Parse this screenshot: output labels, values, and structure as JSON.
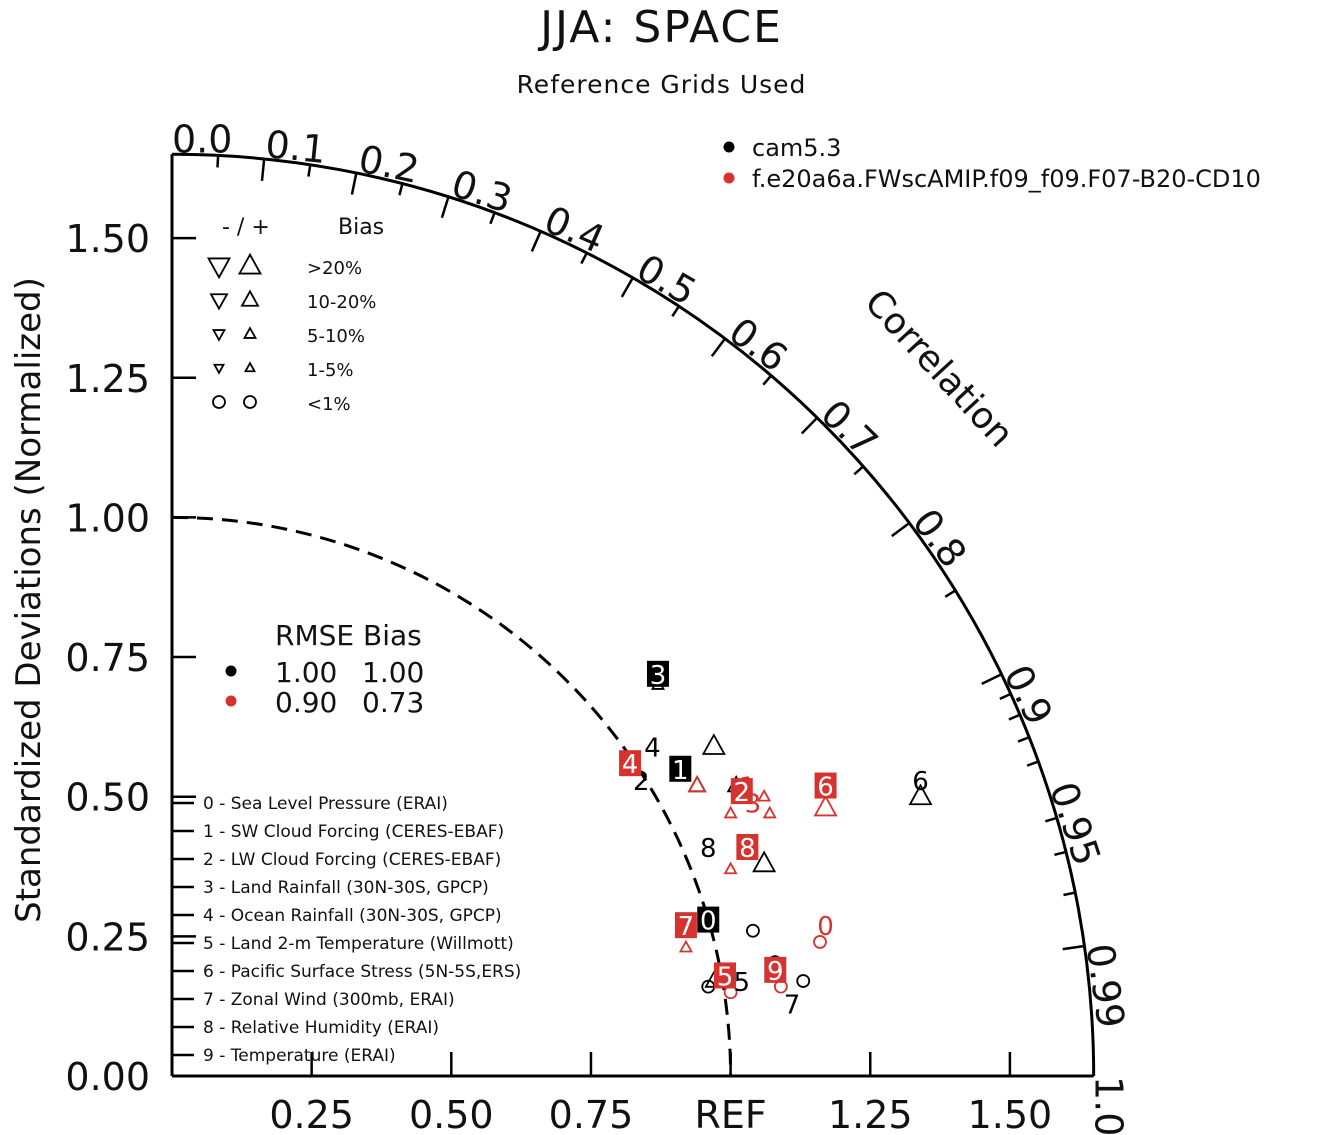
{
  "title": "JJA: SPACE",
  "subtitle": "Reference Grids Used",
  "chart_data": {
    "type": "scatter",
    "title": "JJA: SPACE",
    "subtitle": "Reference Grids Used",
    "ylabel": "Standardized Deviations (Normalized)",
    "correlation_label": "Correlation",
    "xlim": [
      0,
      1.65
    ],
    "ylim": [
      0,
      1.65
    ],
    "y_ticks": [
      "0.00",
      "0.25",
      "0.50",
      "0.75",
      "1.00",
      "1.25",
      "1.50"
    ],
    "x_ticks": [
      "0.25",
      "0.50",
      "0.75",
      "REF",
      "1.25",
      "1.50"
    ],
    "corr_ticks": [
      "0.0",
      "0.1",
      "0.2",
      "0.3",
      "0.4",
      "0.5",
      "0.6",
      "0.7",
      "0.8",
      "0.9",
      "0.95",
      "0.99",
      "1.0"
    ],
    "reference_arc_radius": 1.0,
    "series": [
      {
        "name": "cam5.3",
        "color": "#000000",
        "points": [
          {
            "id": "0",
            "x": 0.96,
            "y": 0.28,
            "label_style": "box"
          },
          {
            "id": "1",
            "x": 0.91,
            "y": 0.55,
            "label_style": "box"
          },
          {
            "id": "2",
            "x": 0.84,
            "y": 0.53,
            "label_style": "plain"
          },
          {
            "id": "3",
            "x": 0.87,
            "y": 0.72,
            "label_style": "box"
          },
          {
            "id": "4",
            "x": 0.86,
            "y": 0.59,
            "label_style": "plain"
          },
          {
            "id": "5",
            "x": 1.02,
            "y": 0.17,
            "label_style": "plain"
          },
          {
            "id": "6",
            "x": 1.34,
            "y": 0.53,
            "label_style": "plain"
          },
          {
            "id": "7",
            "x": 1.11,
            "y": 0.13,
            "label_style": "plain"
          },
          {
            "id": "8",
            "x": 0.96,
            "y": 0.41,
            "label_style": "plain"
          },
          {
            "id": "9",
            "x": 1.08,
            "y": 0.2,
            "label_style": "plain"
          }
        ]
      },
      {
        "name": "f.e20a6a.FWscAMIP.f09_f09.F07-B20-CD10",
        "color": "#d63330",
        "points": [
          {
            "id": "0",
            "x": 1.17,
            "y": 0.27,
            "label_style": "plain"
          },
          {
            "id": "1",
            "x": 1.03,
            "y": 0.52,
            "label_style": "plain"
          },
          {
            "id": "2",
            "x": 1.02,
            "y": 0.51,
            "label_style": "box"
          },
          {
            "id": "3",
            "x": 1.04,
            "y": 0.49,
            "label_style": "plain"
          },
          {
            "id": "4",
            "x": 0.82,
            "y": 0.56,
            "label_style": "box"
          },
          {
            "id": "5",
            "x": 0.99,
            "y": 0.18,
            "label_style": "box"
          },
          {
            "id": "6",
            "x": 1.17,
            "y": 0.52,
            "label_style": "box"
          },
          {
            "id": "7",
            "x": 0.92,
            "y": 0.27,
            "label_style": "box"
          },
          {
            "id": "8",
            "x": 1.03,
            "y": 0.41,
            "label_style": "box"
          },
          {
            "id": "9",
            "x": 1.08,
            "y": 0.19,
            "label_style": "box"
          }
        ]
      }
    ],
    "markers": [
      {
        "series": 0,
        "shape": "tri-up",
        "size": "small",
        "x": 0.87,
        "y": 0.7
      },
      {
        "series": 0,
        "shape": "tri-up",
        "size": "large",
        "x": 0.97,
        "y": 0.59
      },
      {
        "series": 0,
        "shape": "tri-up",
        "size": "medium",
        "x": 0.94,
        "y": 0.52
      },
      {
        "series": 0,
        "shape": "tri-up",
        "size": "medium",
        "x": 1.01,
        "y": 0.52
      },
      {
        "series": 0,
        "shape": "tri-up",
        "size": "large",
        "x": 1.34,
        "y": 0.5
      },
      {
        "series": 0,
        "shape": "tri-up",
        "size": "large",
        "x": 1.06,
        "y": 0.38
      },
      {
        "series": 0,
        "shape": "circle",
        "size": "small",
        "x": 1.04,
        "y": 0.26
      },
      {
        "series": 0,
        "shape": "circle",
        "size": "small",
        "x": 0.96,
        "y": 0.16
      },
      {
        "series": 0,
        "shape": "circle",
        "size": "small",
        "x": 1.13,
        "y": 0.17
      },
      {
        "series": 0,
        "shape": "tri-up",
        "size": "medium",
        "x": 0.97,
        "y": 0.17
      },
      {
        "series": 1,
        "shape": "tri-up",
        "size": "medium",
        "x": 0.94,
        "y": 0.52
      },
      {
        "series": 1,
        "shape": "tri-up",
        "size": "small",
        "x": 1.0,
        "y": 0.47
      },
      {
        "series": 1,
        "shape": "tri-up",
        "size": "small",
        "x": 1.06,
        "y": 0.5
      },
      {
        "series": 1,
        "shape": "tri-up",
        "size": "small",
        "x": 1.07,
        "y": 0.47
      },
      {
        "series": 1,
        "shape": "tri-up",
        "size": "large",
        "x": 1.17,
        "y": 0.48
      },
      {
        "series": 1,
        "shape": "tri-up",
        "size": "small",
        "x": 1.0,
        "y": 0.37
      },
      {
        "series": 1,
        "shape": "tri-up",
        "size": "small",
        "x": 0.92,
        "y": 0.23
      },
      {
        "series": 1,
        "shape": "circle",
        "size": "small",
        "x": 1.16,
        "y": 0.24
      },
      {
        "series": 1,
        "shape": "circle",
        "size": "small",
        "x": 1.09,
        "y": 0.16
      },
      {
        "series": 1,
        "shape": "circle",
        "size": "small",
        "x": 1.0,
        "y": 0.15
      }
    ],
    "legend_series": [
      {
        "name": "cam5.3",
        "color": "#000000"
      },
      {
        "name": "f.e20a6a.FWscAMIP.f09_f09.F07-B20-CD10",
        "color": "#d63330"
      }
    ],
    "bias_legend": {
      "header": "- / +",
      "header_label": "Bias",
      "rows": [
        {
          "label": ">20%",
          "shape": "tri",
          "size": "large"
        },
        {
          "label": "10-20%",
          "shape": "tri",
          "size": "medium"
        },
        {
          "label": "5-10%",
          "shape": "tri",
          "size": "small"
        },
        {
          "label": "1-5%",
          "shape": "tri",
          "size": "tiny"
        },
        {
          "label": "<1%",
          "shape": "circle",
          "size": "small"
        }
      ]
    },
    "stats_legend": {
      "header": "RMSE Bias",
      "rows": [
        {
          "color": "#000000",
          "rmse": "1.00",
          "bias": "1.00"
        },
        {
          "color": "#d63330",
          "rmse": "0.90",
          "bias": "0.73"
        }
      ]
    },
    "variables": [
      "0 - Sea Level Pressure (ERAI)",
      "1 - SW Cloud Forcing (CERES-EBAF)",
      "2 - LW Cloud Forcing (CERES-EBAF)",
      "3 - Land Rainfall (30N-30S, GPCP)",
      "4 - Ocean Rainfall (30N-30S, GPCP)",
      "5 - Land 2-m Temperature (Willmott)",
      "6 - Pacific Surface Stress (5N-5S,ERS)",
      "7 - Zonal Wind (300mb, ERAI)",
      "8 - Relative Humidity (ERAI)",
      "9 - Temperature (ERAI)"
    ]
  }
}
